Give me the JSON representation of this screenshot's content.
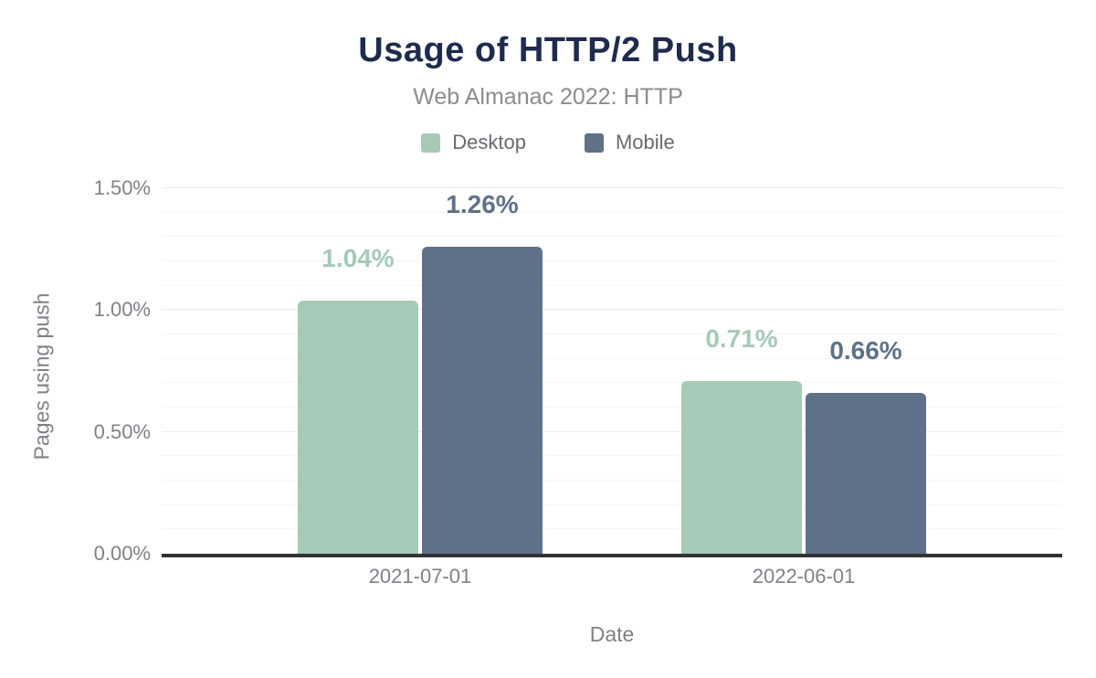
{
  "page": {
    "background": "#ffffff"
  },
  "chart_data": {
    "type": "bar",
    "title": "Usage of HTTP/2 Push",
    "subtitle": "Web Almanac 2022: HTTP",
    "xlabel": "Date",
    "ylabel": "Pages using push",
    "categories": [
      "2021-07-01",
      "2022-06-01"
    ],
    "series": [
      {
        "name": "Desktop",
        "color": "#a6c9b8",
        "values": [
          1.04,
          0.71
        ],
        "labels": [
          "1.04%",
          "0.71%"
        ]
      },
      {
        "name": "Mobile",
        "color": "#5f7189",
        "values": [
          1.26,
          0.66
        ],
        "labels": [
          "1.26%",
          "0.66%"
        ]
      }
    ],
    "ylim": [
      0,
      1.5
    ],
    "yticks": [
      0,
      0.5,
      1,
      1.5
    ],
    "ytick_labels": [
      "0.00%",
      "0.50%",
      "1.00%",
      "1.50%"
    ],
    "minor_grid_step": 0.1,
    "grid": true,
    "legend_position": "top"
  },
  "colors": {
    "title": "#1e2b4d",
    "subtitle": "#8a8c90",
    "legend_text": "#686a6f",
    "tick_text": "#7f8187",
    "axis_title_text": "#7f8187",
    "axis_line": "#333333",
    "grid_major": "#ececec",
    "grid_minor": "#f6f6f6"
  }
}
